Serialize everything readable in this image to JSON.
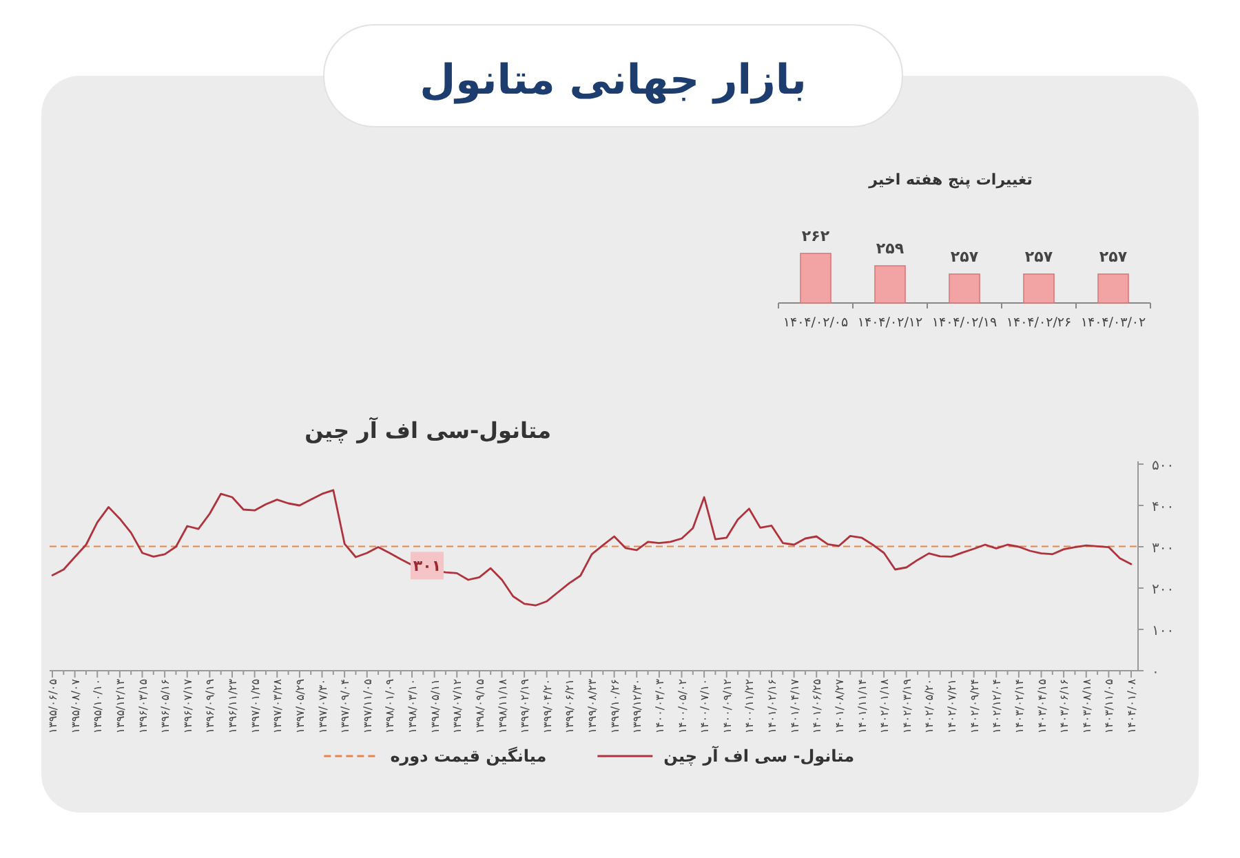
{
  "chart_data": [
    {
      "type": "line",
      "title": "متانول-سی اف آر چین",
      "series": [
        {
          "name": "متانول- سی اف آر چین",
          "color": "#b0323c",
          "values": [
            231,
            245,
            275,
            305,
            359,
            396,
            368,
            334,
            285,
            276,
            282,
            300,
            350,
            343,
            380,
            428,
            420,
            390,
            388,
            403,
            414,
            405,
            400,
            414,
            428,
            437,
            307,
            275,
            285,
            299,
            285,
            270,
            256,
            250,
            242,
            238,
            236,
            220,
            226,
            248,
            220,
            180,
            162,
            158,
            168,
            190,
            212,
            230,
            282,
            304,
            325,
            297,
            292,
            312,
            309,
            312,
            320,
            345,
            420,
            318,
            322,
            366,
            392,
            346,
            351,
            309,
            305,
            320,
            325,
            306,
            302,
            326,
            322,
            305,
            285,
            245,
            250,
            268,
            284,
            277,
            276,
            286,
            295,
            305,
            296,
            305,
            300,
            290,
            284,
            282,
            294,
            299,
            303,
            301,
            299,
            272,
            258
          ]
        }
      ],
      "categories": [
        "۱۳۹۵/۰۶/۰۵",
        null,
        "۱۳۹۵/۰۸/۰۷",
        null,
        "۱۳۹۵/۱۰/۱۰",
        null,
        "۱۳۹۵/۱۲/۱۳",
        null,
        "۱۳۹۶/۰۳/۱۵",
        null,
        "۱۳۹۶/۰۵/۱۶",
        null,
        "۱۳۹۶/۰۷/۱۷",
        null,
        "۱۳۹۶/۰۹/۱۹",
        null,
        "۱۳۹۶/۱۱/۲۳",
        null,
        "۱۳۹۷/۰۱/۲۵",
        null,
        "۱۳۹۷/۰۳/۲۸",
        null,
        "۱۳۹۷/۰۵/۲۹",
        null,
        "۱۳۹۷/۰۷/۳۰",
        null,
        "۱۳۹۷/۰۹/۰۴",
        null,
        "۱۳۹۷/۱۱/۰۵",
        null,
        "۱۳۹۸/۰۱/۰۹",
        null,
        "۱۳۹۸/۰۳/۱۰",
        null,
        "۱۳۹۸/۰۵/۱۱",
        null,
        "۱۳۹۸/۰۷/۱۲",
        null,
        "۱۳۹۸/۰۹/۱۵",
        null,
        "۱۳۹۸/۱۱/۱۸",
        null,
        "۱۳۹۹/۰۲/۱۹",
        null,
        "۱۳۹۹/۰۴/۲۰",
        null,
        "۱۳۹۹/۰۶/۲۱",
        null,
        "۱۳۹۹/۰۸/۲۳",
        null,
        "۱۳۹۹/۱۰/۲۶",
        null,
        "۱۳۹۹/۱۲/۳۰",
        null,
        "۱۴۰۰/۰۳/۰۳",
        null,
        "۱۴۰۰/۰۵/۰۲",
        null,
        "۱۴۰۰/۰۷/۱۰",
        null,
        "۱۴۰۰/۰۹/۱۲",
        null,
        "۱۴۰۰/۱۱/۲۲",
        null,
        "۱۴۰۱/۰۲/۱۶",
        null,
        "۱۴۰۱/۰۴/۱۷",
        null,
        "۱۴۰۱/۰۶/۲۵",
        null,
        "۱۴۰۱/۰۸/۲۷",
        null,
        "۱۴۰۱/۱۱/۱۴",
        null,
        "۱۴۰۲/۰۱/۱۸",
        null,
        "۱۴۰۲/۰۳/۱۹",
        null,
        "۱۴۰۲/۰۵/۲۰",
        null,
        "۱۴۰۲/۰۷/۲۱",
        null,
        "۱۴۰۲/۰۹/۲۴",
        null,
        "۱۴۰۲/۱۲/۰۴",
        null,
        "۱۴۰۳/۰۲/۱۴",
        null,
        "۱۴۰۳/۰۴/۱۵",
        null,
        "۱۴۰۳/۰۶/۱۶",
        null,
        "۱۴۰۳/۰۸/۱۸",
        null,
        "۱۴۰۳/۱۱/۰۵",
        null,
        "۱۴۰۴/۰۱/۰۸"
      ],
      "ylim": [
        0,
        500
      ],
      "yticks": [
        {
          "value": 0,
          "label": "۰"
        },
        {
          "value": 100,
          "label": "۱۰۰"
        },
        {
          "value": 200,
          "label": "۲۰۰"
        },
        {
          "value": 300,
          "label": "۳۰۰"
        },
        {
          "value": 400,
          "label": "۴۰۰"
        },
        {
          "value": 500,
          "label": "۵۰۰"
        }
      ],
      "ref_lines": [
        {
          "axis": "y",
          "value": 301,
          "label": "میانگین قیمت دوره",
          "color": "#e8844a",
          "line_style": "dashed"
        }
      ],
      "annotations": [
        {
          "text": "۳۰۱",
          "y": 301
        }
      ],
      "legend": "bottom",
      "line_style": "solid"
    },
    {
      "type": "bar",
      "title": "بازار جهانی متانول",
      "subtitle": "تغییرات پنج هفته اخیر",
      "categories": [
        "۱۴۰۴/۰۲/۰۵",
        "۱۴۰۴/۰۲/۱۲",
        "۱۴۰۴/۰۲/۱۹",
        "۱۴۰۴/۰۲/۲۶",
        "۱۴۰۴/۰۳/۰۲"
      ],
      "values": [
        262,
        259,
        257,
        257,
        257
      ],
      "value_labels": [
        "۲۶۲",
        "۲۵۹",
        "۲۵۷",
        "۲۵۷",
        "۲۵۷"
      ],
      "color": "#f2a3a3",
      "ylim": [
        250,
        262
      ],
      "tick_labels": "x"
    }
  ]
}
